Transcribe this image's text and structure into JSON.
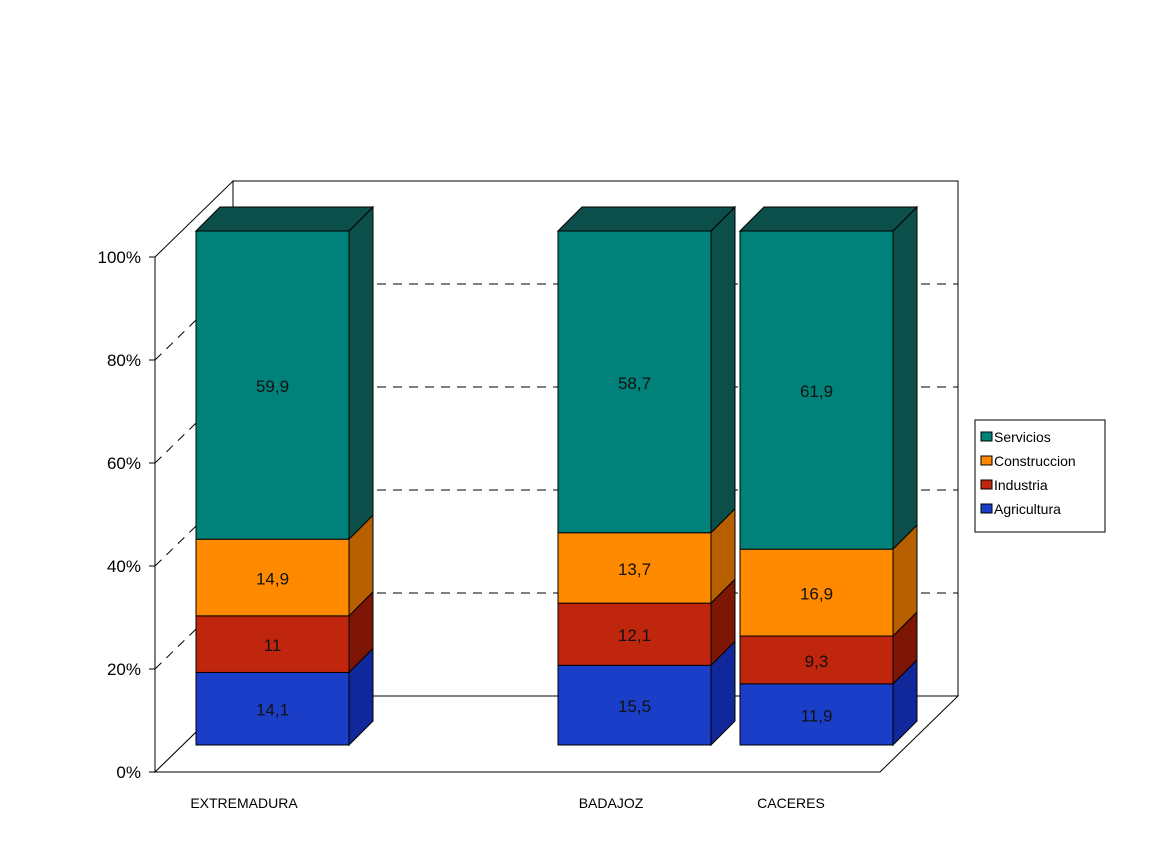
{
  "chart_data": {
    "type": "bar",
    "stacked": true,
    "percent": true,
    "three_d": true,
    "categories": [
      "EXTREMADURA",
      "",
      "BADAJOZ",
      "CACERES"
    ],
    "series": [
      {
        "name": "Agricultura",
        "values": [
          14.1,
          null,
          15.5,
          11.9
        ],
        "labels": [
          "14,1",
          "",
          "15,5",
          "11,9"
        ],
        "color": "#1a3ec8",
        "side": "#10289a",
        "top": "#2a4ee0"
      },
      {
        "name": "Industria",
        "values": [
          11,
          null,
          12.1,
          9.3
        ],
        "labels": [
          "11",
          "",
          "12,1",
          "9,3"
        ],
        "color": "#c0260e",
        "side": "#7e1606",
        "top": "#d33a20"
      },
      {
        "name": "Construccion",
        "values": [
          14.9,
          null,
          13.7,
          16.9
        ],
        "labels": [
          "14,9",
          "",
          "13,7",
          "16,9"
        ],
        "color": "#ff8a00",
        "side": "#b86000",
        "top": "#ffa02a"
      },
      {
        "name": "Servicios",
        "values": [
          59.9,
          null,
          58.7,
          61.9
        ],
        "labels": [
          "59,9",
          "",
          "58,7",
          "61,9"
        ],
        "color": "#00827a",
        "side": "#0c4e4a",
        "top": "#1a6e68"
      }
    ],
    "yticks": [
      "0%",
      "20%",
      "40%",
      "60%",
      "80%",
      "100%"
    ],
    "ylim": [
      0,
      100
    ],
    "grid": true,
    "legend_position": "right",
    "legend_order": [
      "Servicios",
      "Construccion",
      "Industria",
      "Agricultura"
    ]
  }
}
